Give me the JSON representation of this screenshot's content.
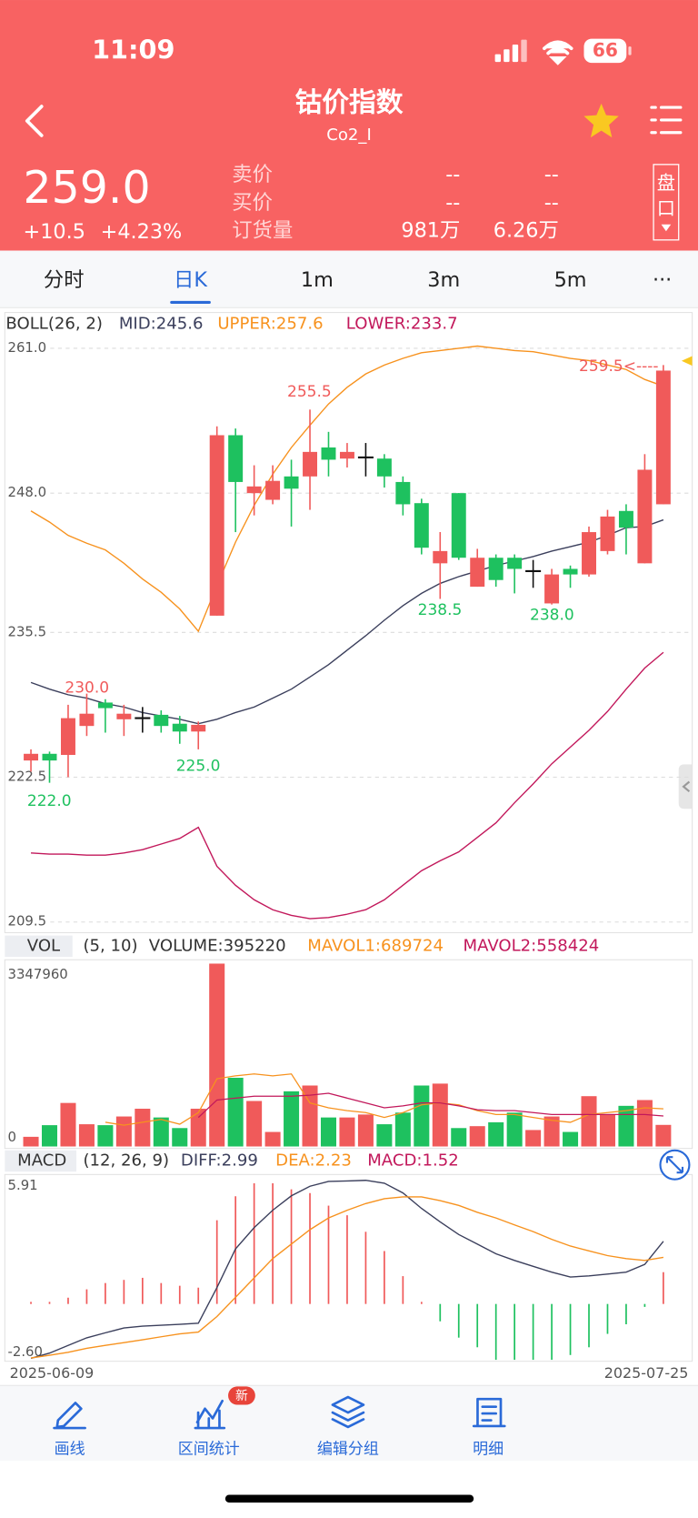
{
  "status_bar": {
    "time": "11:09",
    "battery": "66"
  },
  "header": {
    "title": "钴价指数",
    "code": "Co2_I",
    "price": "259.0",
    "change": "+10.5",
    "change_pct": "+4.23%",
    "quotes": [
      {
        "label": "卖价",
        "values": [
          "--",
          "--"
        ]
      },
      {
        "label": "买价",
        "values": [
          "--",
          "--"
        ]
      },
      {
        "label": "订货量",
        "values": [
          "981万",
          "6.26万"
        ]
      }
    ],
    "button": "盘口"
  },
  "tabs": [
    "分时",
    "日K",
    "1m",
    "3m",
    "5m",
    "···"
  ],
  "active_tab": 1,
  "chart_data": [
    {
      "type": "candlestick",
      "legend": [
        {
          "text": "BOLL(26, 2)",
          "color": "#333333"
        },
        {
          "text": "MID:245.6",
          "color": "#3b3f5c"
        },
        {
          "text": "UPPER:257.6",
          "color": "#f7921e"
        },
        {
          "text": "LOWER:233.7",
          "color": "#c2185b"
        }
      ],
      "up_color": "#f05a5a",
      "down_color": "#1ec15f",
      "flat_color": "#111111",
      "open": [
        224.0,
        224.6,
        224.5,
        227.1,
        229.2,
        227.7,
        227.8,
        228.1,
        227.3,
        226.6,
        237.0,
        253.2,
        248.0,
        247.4,
        249.5,
        249.5,
        252.1,
        251.1,
        251.2,
        251.1,
        249.0,
        247.1,
        241.7,
        248.0,
        239.6,
        242.2,
        242.2,
        241.0,
        238.1,
        241.2,
        240.7,
        242.8,
        246.4,
        241.7,
        247.0
      ],
      "high": [
        225.0,
        224.8,
        229.0,
        230.0,
        229.5,
        229.0,
        228.8,
        228.5,
        228.0,
        227.5,
        254.0,
        253.8,
        250.5,
        250.5,
        251.0,
        255.5,
        253.5,
        252.5,
        252.5,
        251.5,
        249.5,
        247.5,
        244.5,
        248.0,
        243.0,
        242.5,
        242.5,
        242.0,
        241.2,
        241.5,
        245.0,
        246.5,
        247.0,
        251.5,
        259.5
      ],
      "low": [
        223.0,
        222.0,
        222.5,
        226.2,
        226.5,
        226.2,
        226.5,
        226.5,
        225.5,
        225.0,
        237.0,
        244.5,
        246.0,
        247.0,
        245.0,
        246.5,
        249.5,
        250.3,
        249.5,
        248.5,
        246.0,
        242.5,
        238.5,
        242.0,
        239.6,
        239.6,
        239.0,
        239.5,
        238.0,
        239.5,
        240.5,
        242.5,
        242.5,
        241.7,
        247.0
      ],
      "close": [
        224.6,
        224.0,
        227.8,
        228.2,
        228.7,
        228.2,
        227.8,
        227.1,
        226.6,
        227.2,
        253.2,
        249.0,
        248.6,
        249.1,
        248.4,
        251.7,
        251.0,
        251.7,
        251.2,
        249.5,
        247.0,
        243.1,
        242.8,
        242.2,
        242.2,
        240.2,
        241.2,
        241.0,
        240.7,
        240.7,
        244.5,
        245.9,
        244.9,
        250.1,
        259.0
      ],
      "series": [
        {
          "color": "#3b3f5c",
          "values": [
            231.0,
            230.4,
            229.9,
            229.6,
            229.1,
            228.8,
            228.3,
            228.0,
            227.7,
            227.3,
            227.7,
            228.3,
            228.8,
            229.6,
            230.4,
            231.5,
            232.6,
            233.9,
            235.2,
            236.6,
            237.9,
            239.0,
            239.9,
            240.5,
            241.0,
            241.5,
            241.9,
            242.3,
            242.8,
            243.2,
            243.6,
            244.2,
            244.9,
            245.0,
            245.6
          ]
        },
        {
          "color": "#f7921e",
          "values": [
            246.4,
            245.4,
            244.2,
            243.5,
            242.9,
            241.7,
            240.3,
            239.1,
            237.6,
            235.6,
            239.7,
            243.6,
            246.9,
            249.7,
            252.1,
            254.1,
            256.0,
            257.5,
            258.7,
            259.5,
            260.1,
            260.6,
            260.8,
            261.0,
            261.2,
            261.0,
            260.8,
            260.7,
            260.4,
            260.1,
            259.9,
            259.5,
            259.1,
            258.2,
            257.6
          ]
        },
        {
          "color": "#c2185b",
          "values": [
            215.7,
            215.6,
            215.6,
            215.5,
            215.5,
            215.7,
            216.0,
            216.5,
            217.0,
            218.0,
            214.5,
            212.8,
            211.5,
            210.6,
            210.1,
            209.8,
            209.9,
            210.2,
            210.6,
            211.5,
            212.8,
            214.1,
            215.0,
            215.8,
            217.1,
            218.4,
            220.2,
            221.9,
            223.7,
            225.2,
            226.7,
            228.4,
            230.4,
            232.3,
            233.7
          ]
        }
      ],
      "ylim": [
        209.5,
        261.0
      ],
      "yticks": [
        {
          "value": 261.0,
          "label": "261.0"
        },
        {
          "value": 248.0,
          "label": "248.0"
        },
        {
          "value": 235.5,
          "label": "235.5"
        },
        {
          "value": 222.5,
          "label": "222.5"
        },
        {
          "value": 209.5,
          "label": "209.5"
        }
      ],
      "grid": true,
      "annotations": [
        "230.0",
        "222.0",
        "225.0",
        "255.5",
        "238.5",
        "238.0",
        "259.5<----"
      ]
    },
    {
      "type": "bar",
      "legend": [
        {
          "text": "VOL",
          "color": "#333333"
        },
        {
          "text": "(5, 10)",
          "color": "#333333"
        },
        {
          "text": "VOLUME:395220",
          "color": "#333333"
        },
        {
          "text": "MAVOL1:689724",
          "color": "#f7921e"
        },
        {
          "text": "MAVOL2:558424",
          "color": "#c2185b"
        }
      ],
      "values": [
        177000,
        390000,
        797000,
        407000,
        390000,
        549000,
        691000,
        531000,
        337000,
        691000,
        3347960,
        1258000,
        833000,
        266000,
        1010000,
        1116000,
        531000,
        531000,
        585000,
        407000,
        620000,
        1116000,
        1151000,
        337000,
        372000,
        443000,
        620000,
        301000,
        549000,
        266000,
        921000,
        585000,
        744000,
        850000,
        395220
      ],
      "series": [
        {
          "color": "#f7921e",
          "values": [
            null,
            null,
            null,
            null,
            443000,
            390000,
            443000,
            496000,
            407000,
            620000,
            1240000,
            1293000,
            1329000,
            1293000,
            1329000,
            797000,
            709000,
            655000,
            620000,
            531000,
            620000,
            762000,
            797000,
            762000,
            655000,
            585000,
            585000,
            531000,
            478000,
            443000,
            585000,
            620000,
            655000,
            709000,
            689724
          ]
        },
        {
          "color": "#c2185b",
          "values": [
            null,
            null,
            null,
            null,
            null,
            null,
            null,
            null,
            null,
            531000,
            850000,
            886000,
            921000,
            921000,
            921000,
            939000,
            974000,
            886000,
            797000,
            709000,
            744000,
            797000,
            797000,
            744000,
            673000,
            655000,
            655000,
            620000,
            585000,
            585000,
            585000,
            585000,
            585000,
            585000,
            558424
          ]
        }
      ],
      "ylim": [
        0,
        3347960
      ],
      "yticks": [
        0,
        3347960
      ]
    },
    {
      "type": "macd",
      "legend": [
        {
          "text": "MACD",
          "color": "#333333"
        },
        {
          "text": "(12, 26, 9)",
          "color": "#333333"
        },
        {
          "text": "DIFF:2.99",
          "color": "#3b3f5c"
        },
        {
          "text": "DEA:2.23",
          "color": "#f7921e"
        },
        {
          "text": "MACD:1.52",
          "color": "#c2185b"
        }
      ],
      "categories": [
        "2025-06-09",
        null,
        null,
        null,
        null,
        null,
        null,
        null,
        null,
        null,
        null,
        null,
        null,
        null,
        null,
        null,
        null,
        null,
        null,
        null,
        null,
        null,
        null,
        null,
        null,
        null,
        null,
        null,
        null,
        null,
        null,
        null,
        null,
        null,
        "2025-07-25"
      ],
      "values": [
        0.1,
        0.1,
        0.3,
        0.7,
        1.0,
        1.15,
        1.25,
        1.0,
        0.87,
        0.78,
        4.0,
        5.15,
        5.77,
        5.77,
        5.48,
        5.3,
        4.7,
        4.24,
        3.45,
        2.53,
        1.33,
        0.1,
        -0.83,
        -1.61,
        -2.07,
        -2.67,
        -2.67,
        -2.67,
        -2.67,
        -2.44,
        -2.07,
        -1.43,
        -0.97,
        -0.14,
        1.52
      ],
      "series": [
        {
          "color": "#3b3f5c",
          "values": [
            -2.6,
            -2.35,
            -1.98,
            -1.62,
            -1.38,
            -1.15,
            -1.06,
            -1.02,
            -0.97,
            -0.92,
            0.78,
            2.63,
            3.65,
            4.48,
            5.17,
            5.63,
            5.86,
            5.88,
            5.91,
            5.77,
            5.31,
            4.57,
            3.92,
            3.32,
            2.86,
            2.4,
            2.08,
            1.8,
            1.52,
            1.29,
            1.34,
            1.43,
            1.52,
            1.89,
            2.99
          ]
        },
        {
          "color": "#f7921e",
          "values": [
            -2.58,
            -2.45,
            -2.31,
            -2.12,
            -1.98,
            -1.85,
            -1.71,
            -1.57,
            -1.43,
            -1.34,
            -0.6,
            0.32,
            1.25,
            2.17,
            2.86,
            3.55,
            4.11,
            4.48,
            4.8,
            5.03,
            5.12,
            5.12,
            4.94,
            4.71,
            4.38,
            4.11,
            3.78,
            3.46,
            3.09,
            2.77,
            2.54,
            2.31,
            2.17,
            2.08,
            2.23
          ]
        }
      ],
      "ylim": [
        -2.6,
        5.91
      ],
      "yticks": [
        5.91,
        {
          "value": -2.6,
          "label": "-2.60"
        }
      ]
    }
  ],
  "toolbar": [
    {
      "label": "画线"
    },
    {
      "label": "区间统计",
      "badge": "新"
    },
    {
      "label": "编辑分组"
    },
    {
      "label": "明细"
    }
  ]
}
